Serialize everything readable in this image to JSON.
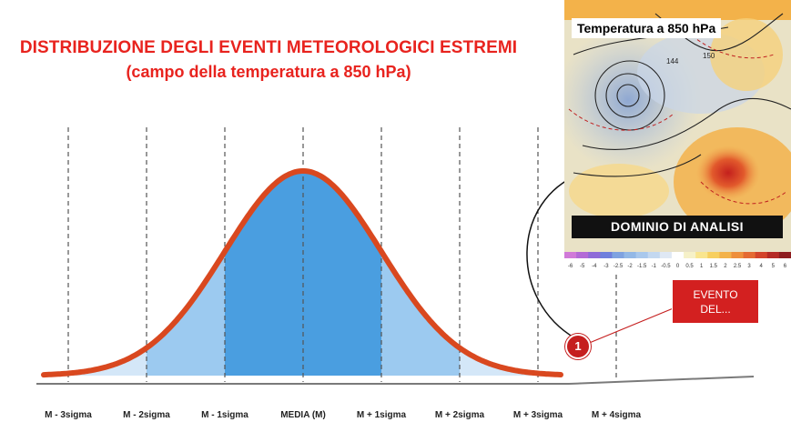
{
  "title": {
    "line1": "DISTRIBUZIONE DEGLI EVENTI METEOROLOGICI ESTREMI",
    "line2": "(campo della temperatura a 850 hPa)"
  },
  "axis_labels": [
    "M - 3sigma",
    "M - 2sigma",
    "M - 1sigma",
    "MEDIA (M)",
    "M + 1sigma",
    "M + 2sigma",
    "M + 3sigma",
    "M + 4sigma"
  ],
  "map": {
    "title": "Temperatura a 850 hPa",
    "domain_label": "DOMINIO DI ANALISI",
    "contour_labels": [
      "144",
      "150"
    ],
    "colorbar_ticks": [
      "-6",
      "-5",
      "-4",
      "-3",
      "-2.5",
      "-2",
      "-1.5",
      "-1",
      "-0.5",
      "0",
      "0.5",
      "1",
      "1.5",
      "2",
      "2.5",
      "3",
      "4",
      "5",
      "6"
    ],
    "colorbar_colors": [
      "#d07ad8",
      "#b36ad6",
      "#8f6bd8",
      "#6f7fdc",
      "#7fa2e0",
      "#93b8e6",
      "#a9c8ec",
      "#c3d8f0",
      "#dfe8f4",
      "#ffffff",
      "#f6f1c8",
      "#f9e58e",
      "#f7cf5f",
      "#f3b24a",
      "#ee8f3c",
      "#e46a33",
      "#d3442b",
      "#b52a25",
      "#8e1d1f"
    ]
  },
  "callout": {
    "line1": "EVENTO",
    "line2": "DEL..."
  },
  "marker": {
    "label": "1"
  },
  "colors": {
    "curve": "#d9481f",
    "inner_fill": "#4a9ee0",
    "outer_fill": "#9ccaf0",
    "tail_fill": "#d4e7f8",
    "title": "#e8231e"
  }
}
